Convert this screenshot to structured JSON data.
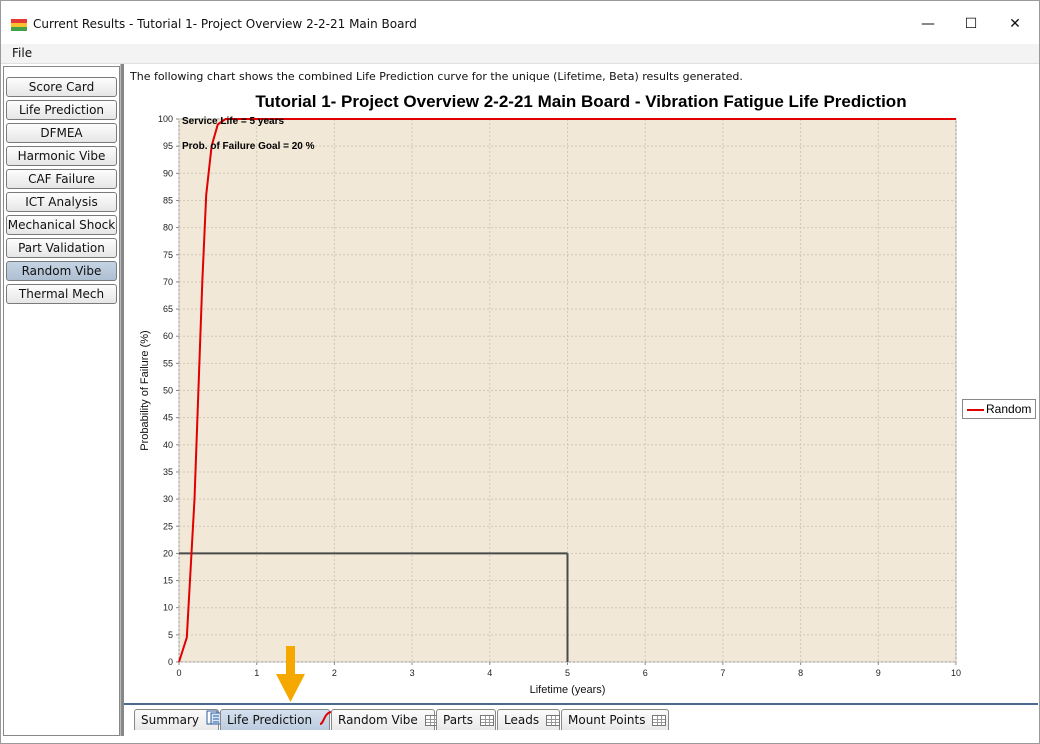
{
  "window": {
    "title": "Current Results - Tutorial 1- Project Overview 2-2-21 Main Board",
    "minimize": "—",
    "maximize": "☐",
    "close": "✕"
  },
  "menu": {
    "file": "File"
  },
  "sidebar": {
    "items": [
      {
        "label": "Score Card"
      },
      {
        "label": "Life Prediction"
      },
      {
        "label": "DFMEA"
      },
      {
        "label": "Harmonic Vibe"
      },
      {
        "label": "CAF Failure"
      },
      {
        "label": "ICT Analysis"
      },
      {
        "label": "Mechanical Shock"
      },
      {
        "label": "Part Validation"
      },
      {
        "label": "Random Vibe"
      },
      {
        "label": "Thermal Mech"
      }
    ],
    "active": "Random Vibe"
  },
  "main": {
    "description": "The following chart shows the combined Life Prediction curve for the unique (Lifetime, Beta) results generated."
  },
  "chart_data": {
    "type": "line",
    "title": "Tutorial 1- Project Overview 2-2-21 Main Board - Vibration Fatigue Life Prediction",
    "xlabel": "Lifetime (years)",
    "ylabel": "Probability of Failure (%)",
    "xlim": [
      0,
      10
    ],
    "ylim": [
      0,
      100
    ],
    "x_ticks": [
      "0",
      "1",
      "2",
      "3",
      "4",
      "5",
      "6",
      "7",
      "8",
      "9",
      "10"
    ],
    "y_ticks": [
      "0",
      "5",
      "10",
      "15",
      "20",
      "25",
      "30",
      "35",
      "40",
      "45",
      "50",
      "55",
      "60",
      "65",
      "70",
      "75",
      "80",
      "85",
      "90",
      "95",
      "100"
    ],
    "grid": true,
    "legend_placement": "right",
    "plot_background": "#f2e8d8",
    "series": [
      {
        "name": "Random",
        "color": "#e00000",
        "x": [
          0,
          0.1,
          0.2,
          0.3,
          0.35,
          0.42,
          0.5,
          0.6,
          1,
          2,
          5,
          10
        ],
        "values": [
          0,
          4.5,
          30,
          70,
          86,
          95,
          99,
          100,
          100,
          100,
          100,
          100
        ]
      }
    ],
    "annotations": [
      {
        "text": "Service Life = 5 years",
        "x": 5,
        "y": 100
      },
      {
        "text": "Prob. of Failure Goal = 20 %",
        "x": 0,
        "y": 95
      }
    ],
    "reference_lines": {
      "service_life_years": 5,
      "failure_goal_percent": 20,
      "color": "#4a4a4a"
    }
  },
  "bottom_tabs": [
    {
      "label": "Summary",
      "icon": "document-icon"
    },
    {
      "label": "Life Prediction",
      "icon": "curve-icon"
    },
    {
      "label": "Random Vibe",
      "icon": "grid-icon"
    },
    {
      "label": "Parts",
      "icon": "grid-icon"
    },
    {
      "label": "Leads",
      "icon": "grid-icon"
    },
    {
      "label": "Mount Points",
      "icon": "grid-icon"
    }
  ],
  "active_bottom_tab": "Life Prediction",
  "colors": {
    "accent": "#4a6a90",
    "arrow": "#f5a800",
    "series": "#e00000"
  }
}
